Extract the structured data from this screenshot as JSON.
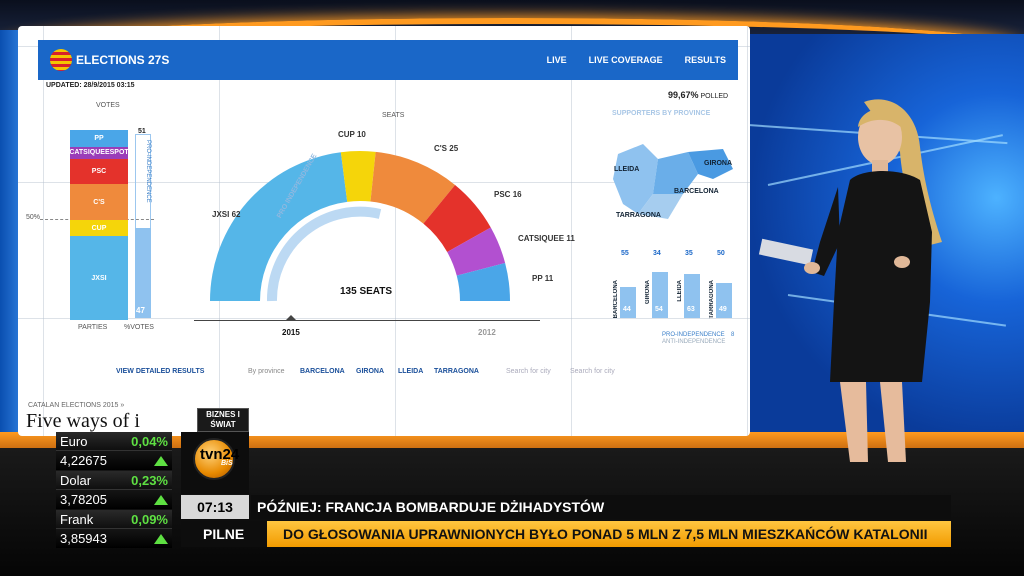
{
  "screen": {
    "nav_title": "ELECTIONS 27S",
    "nav_links": [
      "LIVE",
      "LIVE COVERAGE",
      "RESULTS"
    ],
    "updated": "UPDATED: 28/9/2015 03:15",
    "polled_value": "99,67%",
    "polled_label": "POLLED",
    "votes_label": "VOTES",
    "seats_label": "SEATS",
    "parties_label": "PARTIES",
    "pct_votes_label": "%VOTES",
    "indep_value": "51",
    "indep_bottom": "47",
    "indep_vertical": "PRO-INDEPENDENCE",
    "fifty_label": "50%",
    "vote_segments": [
      {
        "label": "PP",
        "color": "#4aa6e8",
        "share": 8
      },
      {
        "label": "CATSIQUEESPOT",
        "color": "#9a3db8",
        "share": 6
      },
      {
        "label": "PSC",
        "color": "#e4322b",
        "share": 12
      },
      {
        "label": "C'S",
        "color": "#ef8a3c",
        "share": 17
      },
      {
        "label": "CUP",
        "color": "#f5d50a",
        "share": 8
      },
      {
        "label": "JXSI",
        "color": "#55b6e8",
        "share": 40
      }
    ],
    "arc_parties": [
      {
        "label": "JXSI",
        "seats": "62",
        "color": "#55b6e8"
      },
      {
        "label": "CUP",
        "seats": "10",
        "color": "#f5d50a"
      },
      {
        "label": "C'S",
        "seats": "25",
        "color": "#ef8a3c"
      },
      {
        "label": "PSC",
        "seats": "16",
        "color": "#e4322b"
      },
      {
        "label": "CATSIQUEE",
        "seats": "11",
        "color": "#b250d0"
      },
      {
        "label": "PP",
        "seats": "11",
        "color": "#4aa6e8"
      }
    ],
    "pro_independence_arc": "PRO INDEPENDENCE",
    "seats_total": "135 SEATS",
    "year_current": "2015",
    "year_previous": "2012",
    "supporters_title": "SUPPORTERS BY PROVINCE",
    "provinces": [
      {
        "name": "BARCELONA",
        "pct": "55",
        "inner": "44",
        "level": 0.55
      },
      {
        "name": "GIRONA",
        "pct": "34",
        "inner": "54",
        "level": 0.82
      },
      {
        "name": "LLEIDA",
        "pct": "35",
        "inner": "63",
        "level": 0.78
      },
      {
        "name": "TARRAGONA",
        "pct": "50",
        "inner": "49",
        "level": 0.62
      }
    ],
    "map_labels": [
      "LLEIDA",
      "GIRONA",
      "BARCELONA",
      "TARRAGONA"
    ],
    "legend_pro": "PRO-INDEPENDENCE",
    "legend_anti": "ANTI-INDEPENDENCE",
    "legend_value": "8",
    "view_results": "VIEW DETAILED RESULTS",
    "by_province": "By province",
    "province_links": [
      "BARCELONA",
      "GIRONA",
      "LLEIDA",
      "TARRAGONA"
    ],
    "search_city_1": "Search for city",
    "search_city_2": "Search for city",
    "crumb": "CATALAN ELECTIONS 2015 »",
    "headline": "Five ways of i"
  },
  "ticker": [
    {
      "name": "Euro",
      "change": "0,04%",
      "value": "4,22675"
    },
    {
      "name": "Dolar",
      "change": "0,23%",
      "value": "3,78205"
    },
    {
      "name": "Frank",
      "change": "0,09%",
      "value": "3,85943"
    }
  ],
  "brand": {
    "tag": "BIZNES I ŚWIAT",
    "logo": "tvn24",
    "logo_sub": "BiS"
  },
  "clock": "07:13",
  "upnext": "PÓŹNIEJ: FRANCJA BOMBARDUJE DŻIHADYSTÓW",
  "pilne": "PILNE",
  "crawl": "DO GŁOSOWANIA UPRAWNIONYCH BYŁO PONAD 5 MLN Z 7,5 MLN MIESZKAŃCÓW KATALONII",
  "colors": {
    "accent_orange": "#ff9a1f",
    "screen_blue": "#1a67c8",
    "ticker_green": "#5ee042"
  }
}
